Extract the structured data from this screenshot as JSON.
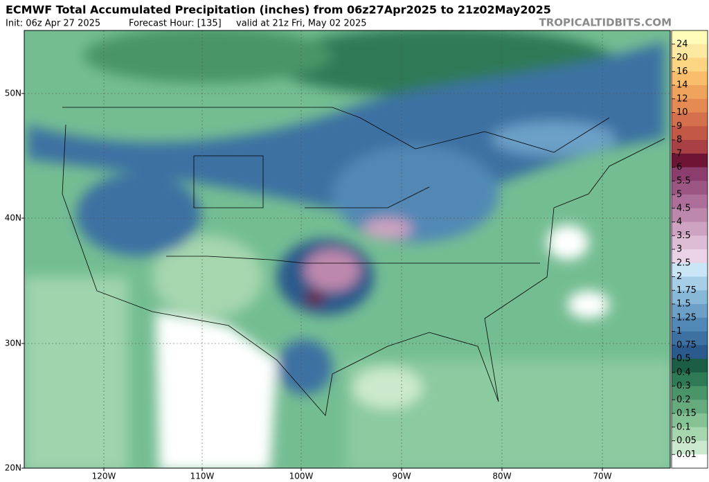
{
  "header": {
    "title": "ECMWF Total Accumulated Precipitation (inches) from 06z27Apr2025 to 21z02May2025",
    "init": "Init: 06z Apr 27 2025",
    "forecast_hour": "Forecast Hour: [135]",
    "valid": "valid at 21z Fri, May 02 2025",
    "credit": "TROPICALTIDBITS.COM"
  },
  "map": {
    "lat_labels": [
      "50N",
      "40N",
      "30N",
      "20N"
    ],
    "lon_labels": [
      "120W",
      "110W",
      "100W",
      "90W",
      "80W",
      "70W"
    ]
  },
  "colorbar": {
    "labels": [
      "24",
      "20",
      "16",
      "14",
      "12",
      "10",
      "9",
      "8",
      "7",
      "6",
      "5.5",
      "5",
      "4.5",
      "4",
      "3.5",
      "3",
      "2.5",
      "2",
      "1.75",
      "1.5",
      "1.25",
      "1",
      "0.75",
      "0.5",
      "0.4",
      "0.3",
      "0.2",
      "0.15",
      "0.1",
      "0.05",
      "0.01"
    ],
    "colors": [
      "#fefcb8",
      "#fde9a0",
      "#fcd583",
      "#f9bd6c",
      "#f0a35c",
      "#e48a52",
      "#d4704b",
      "#c35847",
      "#a94046",
      "#6e1435",
      "#8b3d6d",
      "#9c5684",
      "#ad6f99",
      "#be88ad",
      "#cea2c1",
      "#ddbcd5",
      "#ead3e6",
      "#c9e5f6",
      "#a6cfe7",
      "#88b8d8",
      "#6ca0c7",
      "#5288b5",
      "#3c71a2",
      "#2b5a8c",
      "#1c5e45",
      "#2f7a56",
      "#4a9469",
      "#66ab7d",
      "#85c294",
      "#a6d6ae",
      "#cbe9ce",
      "#ffffff"
    ]
  }
}
